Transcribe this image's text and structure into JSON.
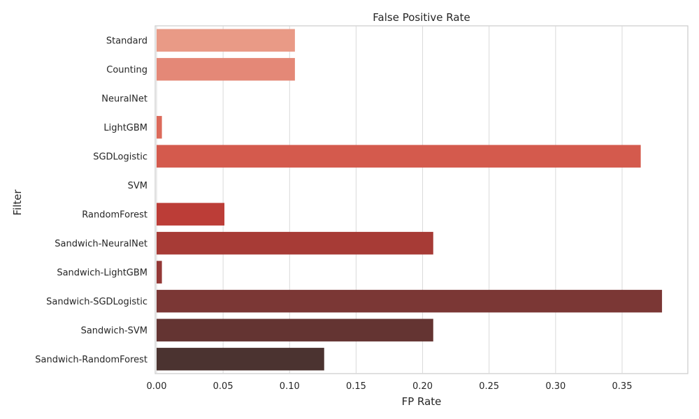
{
  "chart_data": {
    "type": "bar",
    "orientation": "horizontal",
    "title": "False Positive Rate",
    "xlabel": "FP Rate",
    "ylabel": "Filter",
    "xlim": [
      0,
      0.4
    ],
    "xticks": [
      "0.00",
      "0.05",
      "0.10",
      "0.15",
      "0.20",
      "0.25",
      "0.30",
      "0.35"
    ],
    "grid": "vertical",
    "categories": [
      "Standard",
      "Counting",
      "NeuralNet",
      "LightGBM",
      "SGDLogistic",
      "SVM",
      "RandomForest",
      "Sandwich-NeuralNet",
      "Sandwich-LightGBM",
      "Sandwich-SGDLogistic",
      "Sandwich-SVM",
      "Sandwich-RandomForest"
    ],
    "values": [
      0.104,
      0.104,
      0.0,
      0.004,
      0.364,
      0.0,
      0.051,
      0.208,
      0.004,
      0.38,
      0.208,
      0.126
    ],
    "colors": [
      "#e99a86",
      "#e48877",
      "#e07868",
      "#dc6a5a",
      "#d45a4d",
      "#c9483e",
      "#bc3d37",
      "#a73b36",
      "#933836",
      "#7b3735",
      "#643432",
      "#4b3330"
    ]
  }
}
